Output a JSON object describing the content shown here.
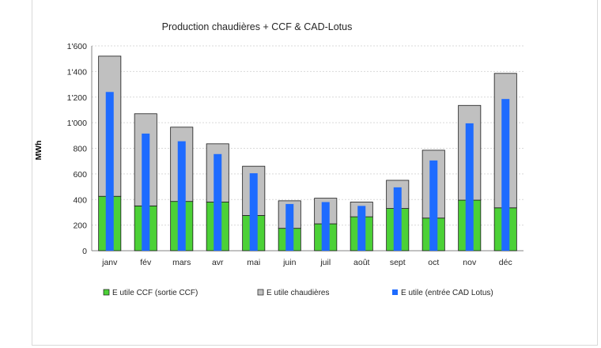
{
  "chart_data": {
    "type": "bar",
    "title": "Production chaudières + CCF & CAD-Lotus",
    "xlabel": "",
    "ylabel": "MWh",
    "ylim": [
      0,
      1600
    ],
    "ytick_step": 200,
    "ytick_labels": [
      "0",
      "200",
      "400",
      "600",
      "800",
      "1'000",
      "1'200",
      "1'400",
      "1'600"
    ],
    "grid": true,
    "categories": [
      "janv",
      "fév",
      "mars",
      "avr",
      "mai",
      "juin",
      "juil",
      "août",
      "sept",
      "oct",
      "nov",
      "déc"
    ],
    "series": [
      {
        "name": "E utile CCF (sortie CCF)",
        "color": "#4cd137",
        "values": [
          425,
          350,
          385,
          380,
          275,
          175,
          210,
          265,
          330,
          255,
          395,
          335
        ]
      },
      {
        "name": "E utile chaudières",
        "color": "#c0c0c0",
        "values": [
          1095,
          720,
          580,
          455,
          385,
          215,
          200,
          115,
          220,
          530,
          740,
          1050
        ]
      },
      {
        "name": "E utile (entrée CAD Lotus)",
        "color": "#1e6bff",
        "values": [
          1240,
          915,
          855,
          755,
          605,
          365,
          380,
          350,
          495,
          705,
          995,
          1185
        ]
      }
    ],
    "stacked_series": [
      "E utile CCF (sortie CCF)",
      "E utile chaudières"
    ],
    "overlay_series": "E utile (entrée CAD Lotus)",
    "legend_position": "bottom"
  }
}
